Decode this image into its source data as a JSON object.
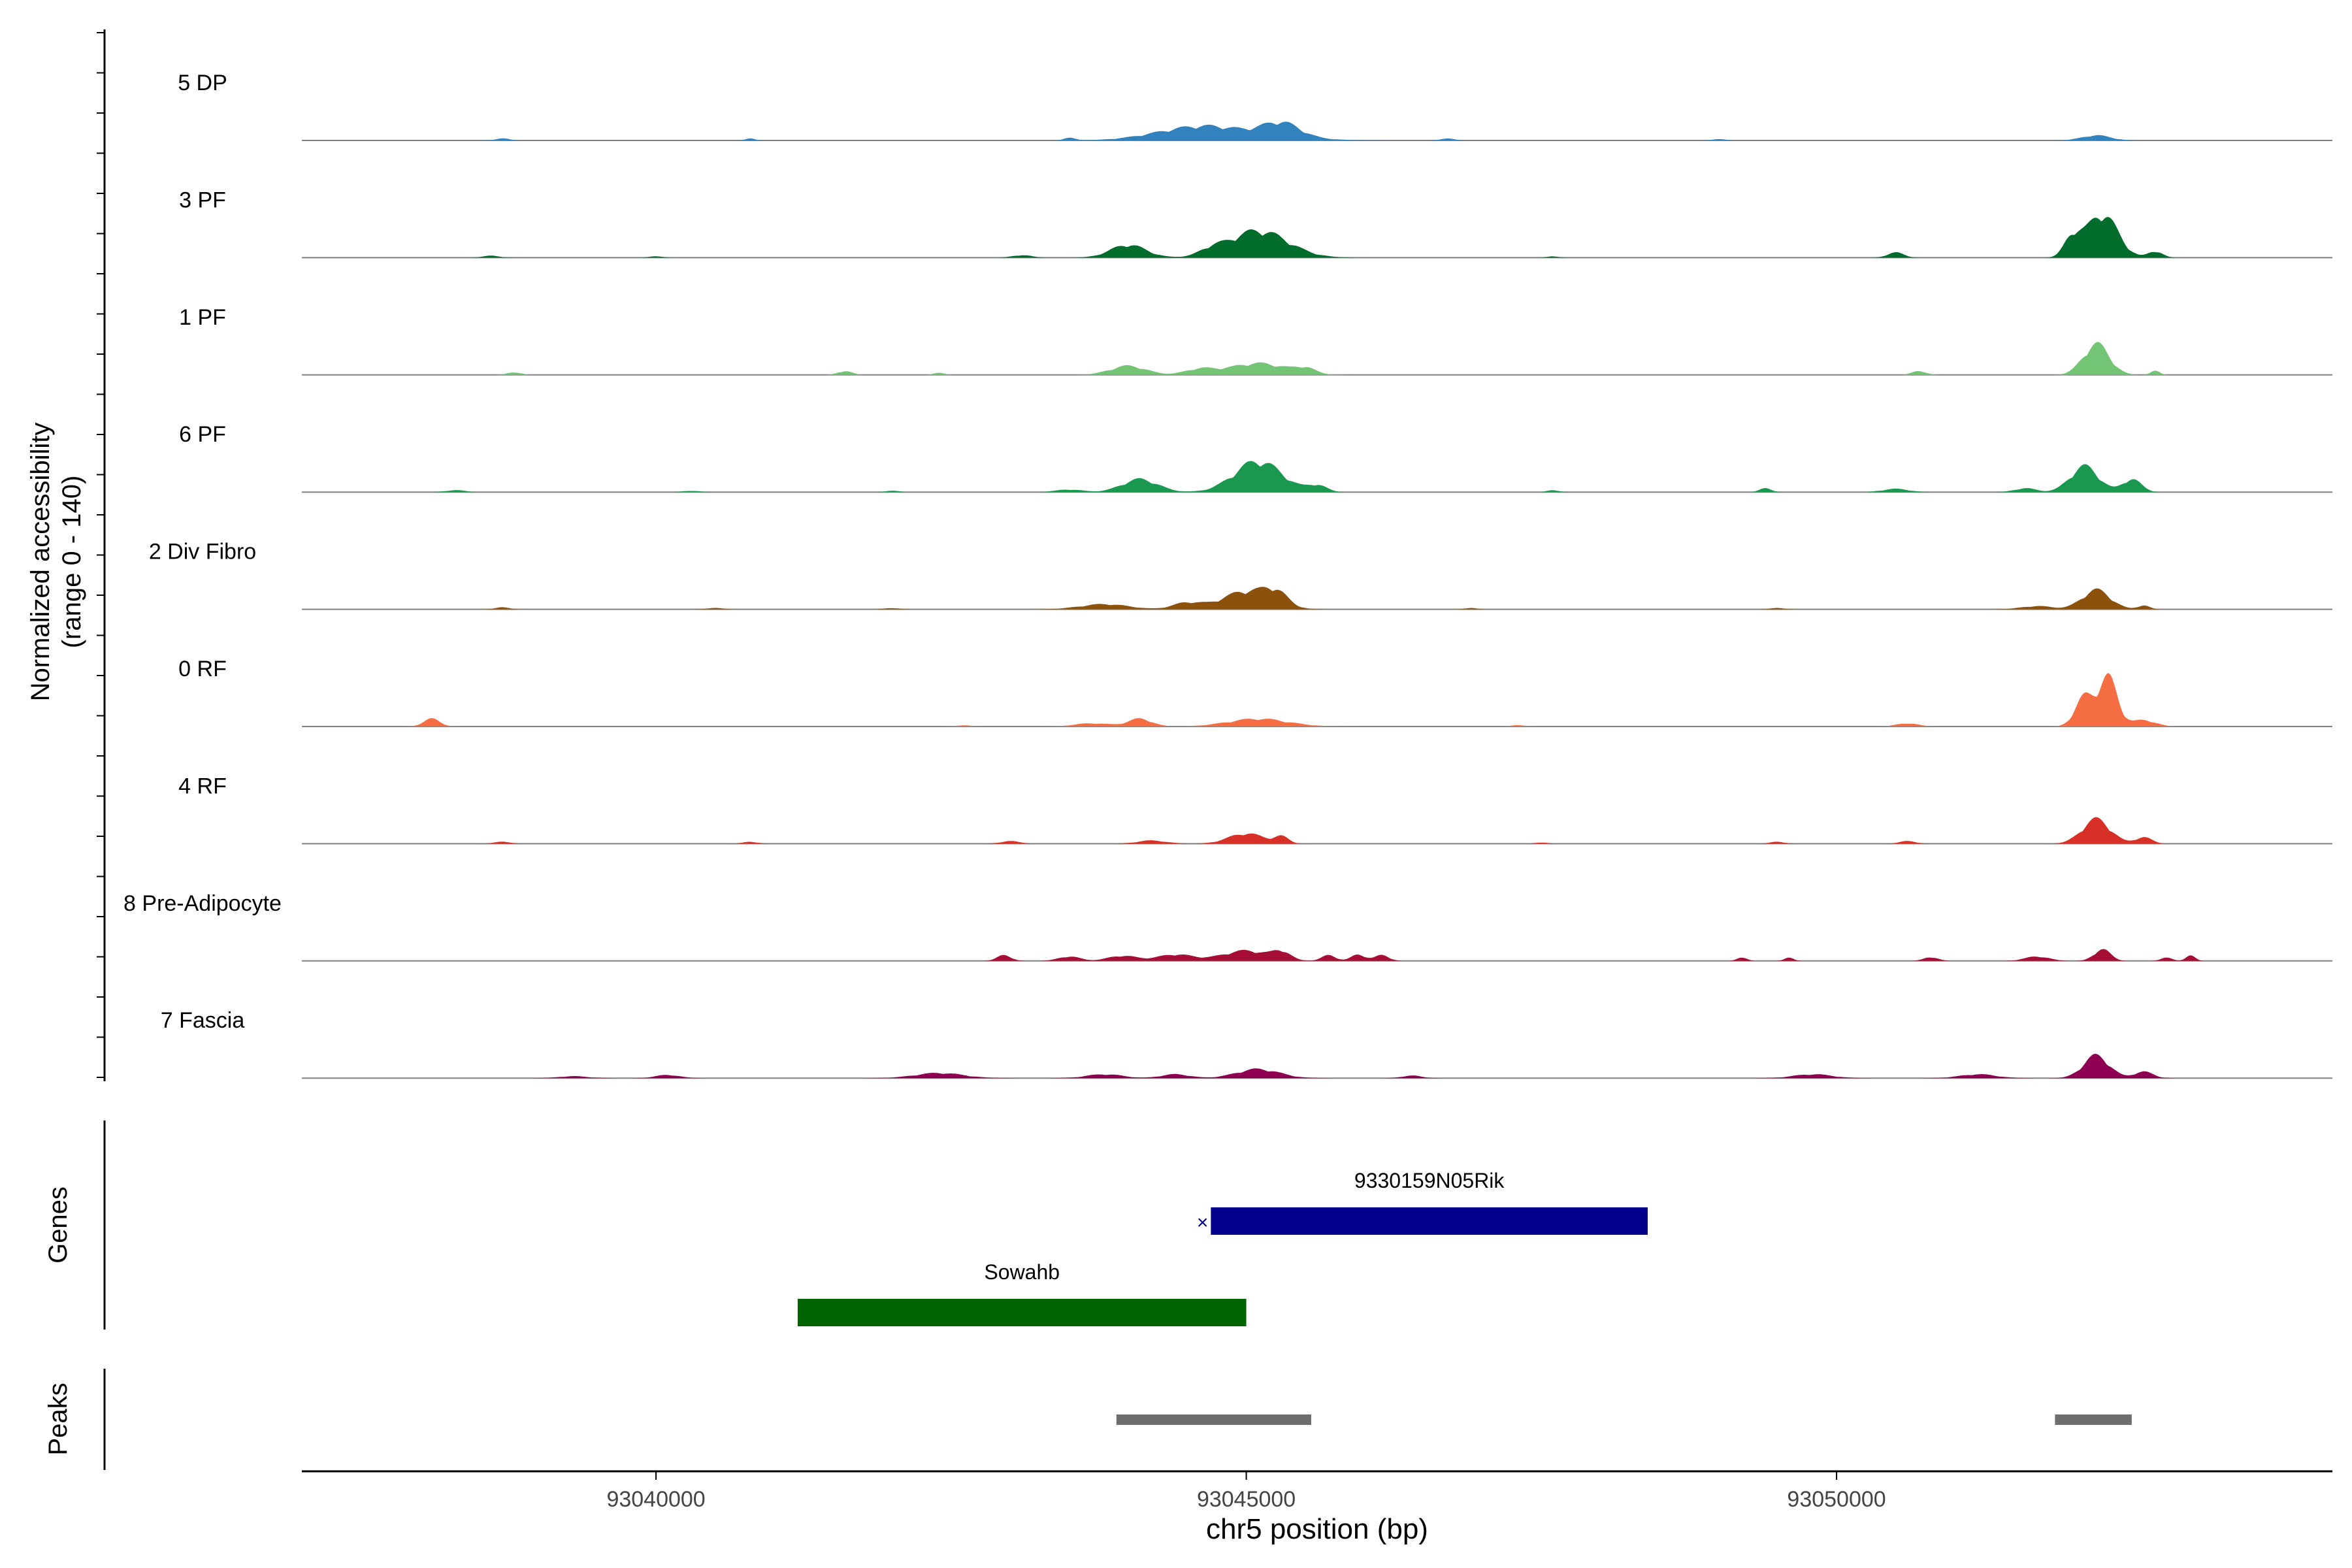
{
  "chart_data": {
    "type": "area",
    "title": "",
    "ylabel_line1": "Normalized accessibility",
    "ylabel_line2": "(range 0 - 140)",
    "xlabel": "chr5 position (bp)",
    "xlim": [
      93037000,
      93054200
    ],
    "ylim": [
      0,
      140
    ],
    "xticks": [
      93040000,
      93045000,
      93050000
    ],
    "xtick_labels": [
      "93040000",
      "93045000",
      "93050000"
    ],
    "series": [
      {
        "name": "5 DP",
        "color": "#3182BD",
        "bumps": [
          [
            93038700,
            60,
            3
          ],
          [
            93040800,
            40,
            3
          ],
          [
            93043500,
            50,
            4
          ],
          [
            93044400,
            300,
            12
          ],
          [
            93044700,
            250,
            10
          ],
          [
            93045300,
            150,
            20
          ],
          [
            93045100,
            350,
            10
          ],
          [
            93046700,
            60,
            3
          ],
          [
            93052200,
            120,
            8
          ],
          [
            93049000,
            60,
            2
          ]
        ]
      },
      {
        "name": "3 PF",
        "color": "#006D2C",
        "bumps": [
          [
            93038600,
            70,
            3
          ],
          [
            93040000,
            60,
            2
          ],
          [
            93043100,
            80,
            4
          ],
          [
            93044000,
            150,
            20
          ],
          [
            93045100,
            250,
            42
          ],
          [
            93044700,
            90,
            8
          ],
          [
            93047600,
            50,
            2
          ],
          [
            93050500,
            70,
            8
          ],
          [
            93052000,
            70,
            30
          ],
          [
            93052250,
            130,
            68
          ],
          [
            93052700,
            60,
            10
          ]
        ]
      },
      {
        "name": "1 PF",
        "color": "#74C476",
        "bumps": [
          [
            93038800,
            60,
            4
          ],
          [
            93041600,
            60,
            6
          ],
          [
            93042400,
            50,
            3
          ],
          [
            93044000,
            150,
            14
          ],
          [
            93044600,
            120,
            8
          ],
          [
            93045100,
            250,
            18
          ],
          [
            93045500,
            80,
            8
          ],
          [
            93050700,
            60,
            6
          ],
          [
            93052200,
            110,
            48
          ],
          [
            93052700,
            40,
            6
          ]
        ]
      },
      {
        "name": "6 PF",
        "color": "#1A9850",
        "bumps": [
          [
            93038300,
            80,
            3
          ],
          [
            93040300,
            70,
            2
          ],
          [
            93042000,
            60,
            2
          ],
          [
            93043500,
            110,
            4
          ],
          [
            93044100,
            150,
            20
          ],
          [
            93045100,
            200,
            48
          ],
          [
            93045600,
            80,
            10
          ],
          [
            93047600,
            50,
            3
          ],
          [
            93049400,
            50,
            6
          ],
          [
            93050500,
            110,
            5
          ],
          [
            93051600,
            90,
            6
          ],
          [
            93052100,
            120,
            40
          ],
          [
            93052500,
            80,
            20
          ]
        ]
      },
      {
        "name": "2 Div Fibro",
        "color": "#8C510A",
        "bumps": [
          [
            93038700,
            60,
            3
          ],
          [
            93040500,
            70,
            2
          ],
          [
            93042000,
            60,
            2
          ],
          [
            93043800,
            200,
            8
          ],
          [
            93044500,
            120,
            10
          ],
          [
            93045000,
            200,
            28
          ],
          [
            93045250,
            100,
            20
          ],
          [
            93046900,
            50,
            2
          ],
          [
            93049500,
            60,
            2
          ],
          [
            93051700,
            130,
            5
          ],
          [
            93052200,
            120,
            30
          ],
          [
            93052600,
            50,
            6
          ]
        ]
      },
      {
        "name": "0 RF",
        "color": "#F46D43",
        "bumps": [
          [
            93038100,
            70,
            12
          ],
          [
            93042600,
            60,
            2
          ],
          [
            93043700,
            150,
            5
          ],
          [
            93044100,
            100,
            12
          ],
          [
            93045100,
            250,
            12
          ],
          [
            93047300,
            60,
            2
          ],
          [
            93050600,
            90,
            5
          ],
          [
            93052100,
            80,
            45
          ],
          [
            93052300,
            80,
            75
          ],
          [
            93052600,
            100,
            10
          ]
        ]
      },
      {
        "name": "4 RF",
        "color": "#D73027",
        "bumps": [
          [
            93038700,
            70,
            3
          ],
          [
            93040800,
            60,
            3
          ],
          [
            93043000,
            80,
            4
          ],
          [
            93044200,
            120,
            5
          ],
          [
            93045000,
            150,
            16
          ],
          [
            93045300,
            60,
            10
          ],
          [
            93047500,
            50,
            2
          ],
          [
            93049500,
            60,
            3
          ],
          [
            93050600,
            70,
            4
          ],
          [
            93052200,
            120,
            38
          ],
          [
            93052600,
            70,
            10
          ]
        ]
      },
      {
        "name": "8 Pre-Adipocyte",
        "color": "#A50F36",
        "bumps": [
          [
            93042950,
            60,
            9
          ],
          [
            93043500,
            90,
            7
          ],
          [
            93043950,
            120,
            8
          ],
          [
            93044400,
            150,
            10
          ],
          [
            93045000,
            200,
            16
          ],
          [
            93045300,
            70,
            12
          ],
          [
            93045700,
            60,
            9
          ],
          [
            93045950,
            60,
            10
          ],
          [
            93046150,
            60,
            9
          ],
          [
            93049200,
            40,
            6
          ],
          [
            93049600,
            40,
            5
          ],
          [
            93050800,
            60,
            6
          ],
          [
            93051700,
            100,
            7
          ],
          [
            93052250,
            70,
            18
          ],
          [
            93052800,
            50,
            5
          ],
          [
            93053000,
            40,
            8
          ]
        ]
      },
      {
        "name": "7 Fascia",
        "color": "#8E0152",
        "bumps": [
          [
            93039300,
            120,
            3
          ],
          [
            93040100,
            100,
            5
          ],
          [
            93042400,
            200,
            8
          ],
          [
            93043800,
            150,
            6
          ],
          [
            93044400,
            120,
            6
          ],
          [
            93045100,
            180,
            14
          ],
          [
            93046400,
            80,
            4
          ],
          [
            93049800,
            160,
            6
          ],
          [
            93051200,
            150,
            6
          ],
          [
            93052200,
            110,
            35
          ],
          [
            93052600,
            80,
            10
          ]
        ]
      }
    ],
    "genes_label": "Genes",
    "genes": [
      {
        "name": "9330159N05Rik",
        "start": 93044700,
        "end": 93048400,
        "color": "#00008B",
        "strand_glyph": "×"
      },
      {
        "name": "Sowahb",
        "start": 93041200,
        "end": 93045000,
        "color": "#006400",
        "strand_glyph": ""
      }
    ],
    "peaks_label": "Peaks",
    "peaks": [
      {
        "start": 93043900,
        "end": 93045550
      },
      {
        "start": 93051850,
        "end": 93052500
      }
    ],
    "peak_color": "#6E6E6E",
    "baseline_color": "#808080",
    "grid": false
  }
}
